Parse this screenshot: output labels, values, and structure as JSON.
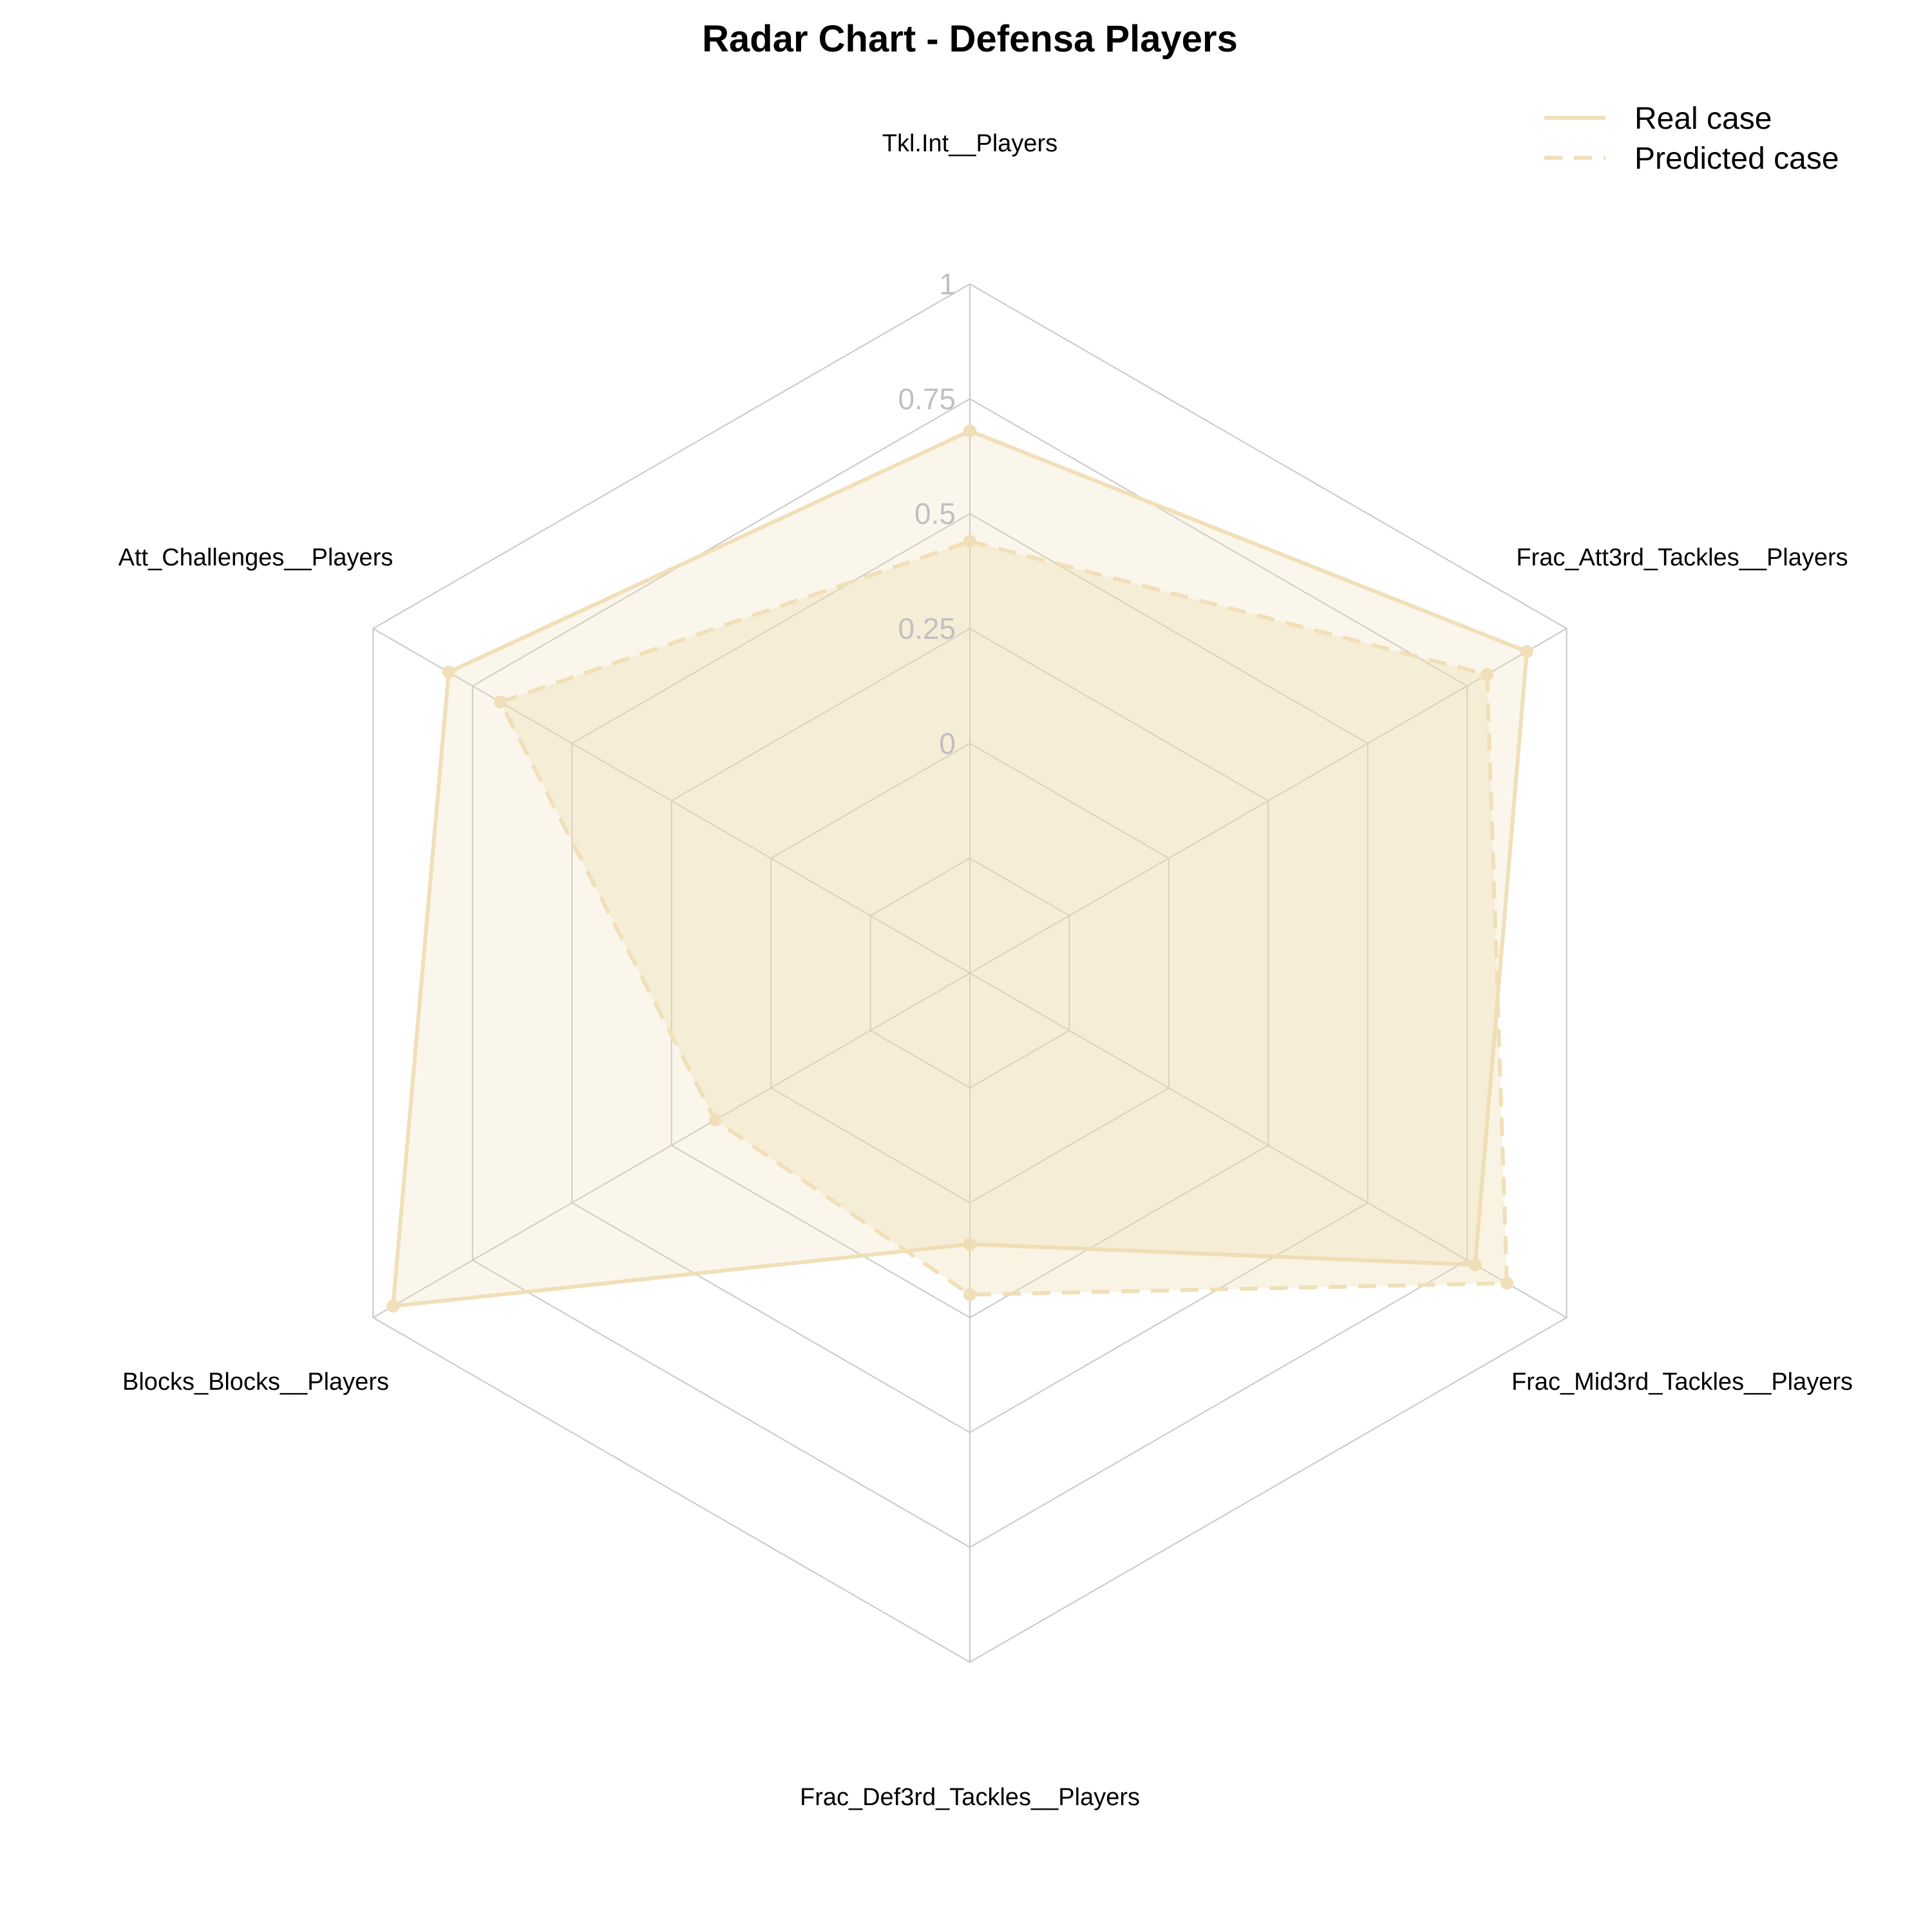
{
  "chart_data": {
    "type": "radar",
    "title": "Radar Chart - Defensa Players",
    "axes": [
      "Tkl.Int__Players",
      "Frac_Att3rd_Tackles__Players",
      "Frac_Mid3rd_Tackles__Players",
      "Frac_Def3rd_Tackles__Players",
      "Blocks_Blocks__Players",
      "Att_Challenges__Players"
    ],
    "rlim": [
      -0.5,
      1
    ],
    "ticks": [
      0,
      0.25,
      0.5,
      0.75,
      1
    ],
    "tick_labels": [
      "0",
      "0.25",
      "0.5",
      "0.75",
      "1"
    ],
    "grid": true,
    "series": [
      {
        "name": "Real case",
        "line": "solid",
        "values": [
          0.68,
          0.9,
          0.77,
          0.09,
          0.95,
          0.81
        ]
      },
      {
        "name": "Predicted case",
        "line": "dashed",
        "values": [
          0.44,
          0.8,
          0.85,
          0.2,
          0.14,
          0.68
        ]
      }
    ],
    "legend": {
      "position": "top-right"
    },
    "colors": {
      "series": "#f0dfb8",
      "fill": "#efdcb0",
      "grid": "#c8c8c8",
      "tick": "#c0c0c0"
    }
  }
}
